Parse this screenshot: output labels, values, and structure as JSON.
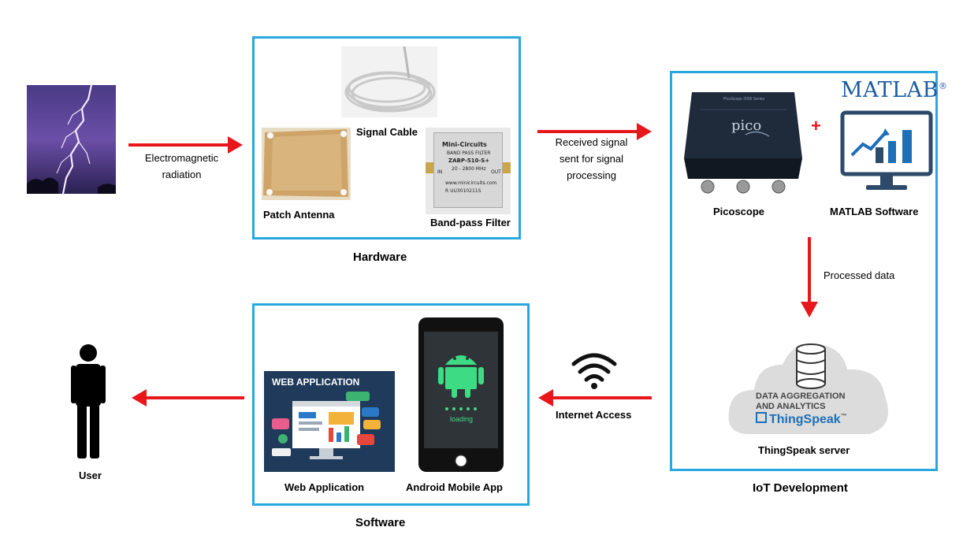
{
  "lightning": {
    "icon": "lightning-icon"
  },
  "arrow_labels": {
    "em_radiation": [
      "Electromagnetic",
      "radiation"
    ],
    "received_signal": [
      "Received signal",
      "sent for signal",
      "processing"
    ],
    "processed_data": "Processed data",
    "internet_access": "Internet Access"
  },
  "hardware": {
    "title": "Hardware",
    "signal_cable": "Signal Cable",
    "patch_antenna": "Patch Antenna",
    "bandpass_filter": "Band-pass Filter",
    "filter_brand": "Mini-Circuits",
    "filter_type": "BAND PASS FILTER",
    "filter_model": "ZABP-510-S+",
    "filter_range": "20 - 2800 MHz",
    "filter_in": "IN",
    "filter_out": "OUT",
    "filter_url": "www.minicircuits.com",
    "filter_serial": "R UU3010211S"
  },
  "iot": {
    "title": "IoT Development",
    "picoscope": "Picoscope",
    "picoscope_series": "PicoScope 2000 Series",
    "pico_brand": "pico",
    "matlab_logo": "MATLAB",
    "matlab_reg": "®",
    "matlab_software": "MATLAB Software",
    "plus": "+",
    "thingspeak_line1": "DATA AGGREGATION",
    "thingspeak_line2": "AND ANALYTICS",
    "thingspeak_brand": "ThingSpeak",
    "thingspeak_tm": "™",
    "thingspeak_server": "ThingSpeak server"
  },
  "software": {
    "title": "Software",
    "web_banner": "WEB APPLICATION",
    "web_application": "Web Application",
    "android_app": "Android Mobile App",
    "loading": "loading"
  },
  "user": {
    "label": "User"
  },
  "colors": {
    "accent_border": "#29a8e0",
    "arrow": "#e8171b",
    "android": "#3ddc84"
  }
}
